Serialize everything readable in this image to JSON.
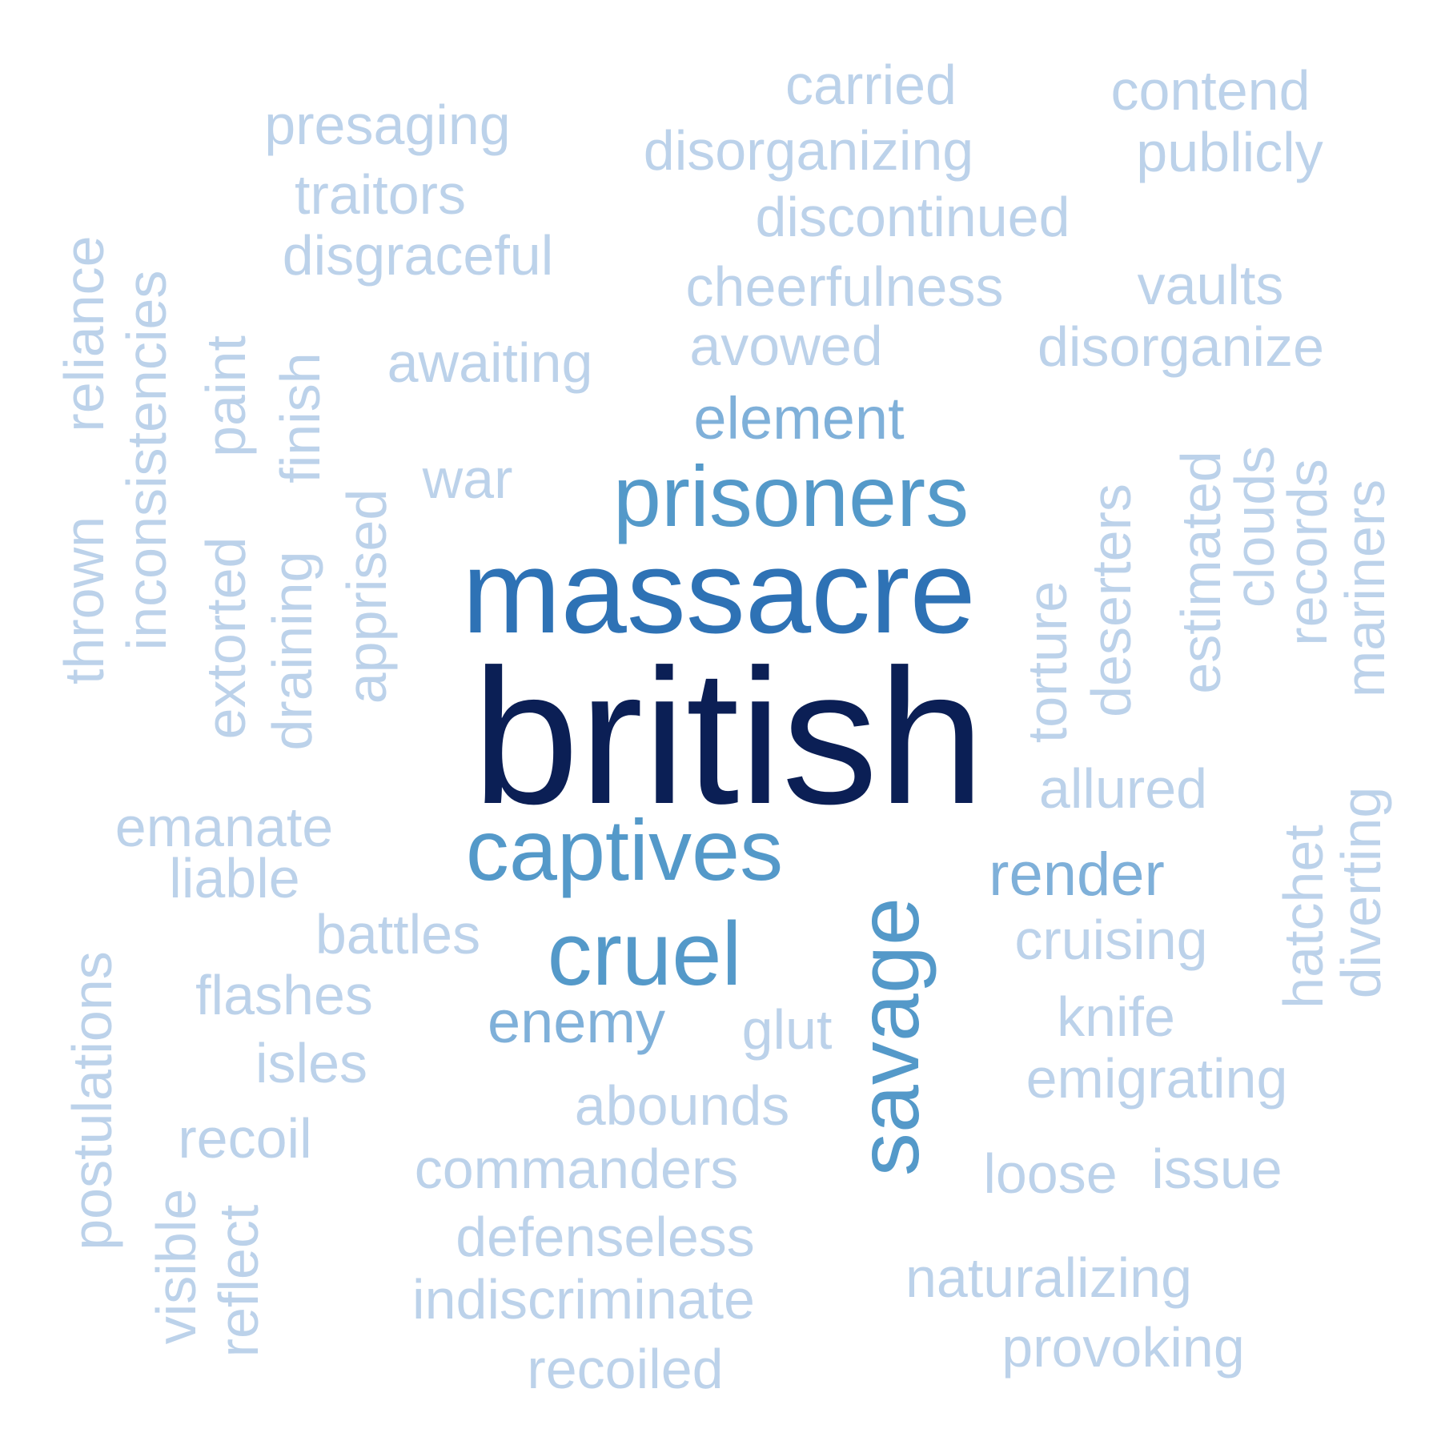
{
  "words": [
    {
      "text": "british",
      "weight": 1.0,
      "color": "#0b1f55"
    },
    {
      "text": "massacre",
      "weight": 0.62,
      "color": "#2e72b5"
    },
    {
      "text": "prisoners",
      "weight": 0.45,
      "color": "#5499c9"
    },
    {
      "text": "captives",
      "weight": 0.45,
      "color": "#5499c9"
    },
    {
      "text": "cruel",
      "weight": 0.47,
      "color": "#5499c9"
    },
    {
      "text": "savage",
      "weight": 0.45,
      "color": "#5499c9"
    },
    {
      "text": "element",
      "weight": 0.3,
      "color": "#7fb0d9"
    },
    {
      "text": "enemy",
      "weight": 0.3,
      "color": "#7fb0d9"
    },
    {
      "text": "render",
      "weight": 0.3,
      "color": "#7fb0d9"
    },
    {
      "text": "carried",
      "weight": 0.25,
      "color": "#bcd2ea"
    },
    {
      "text": "contend",
      "weight": 0.25,
      "color": "#bcd2ea"
    },
    {
      "text": "presaging",
      "weight": 0.25,
      "color": "#bcd2ea"
    },
    {
      "text": "disorganizing",
      "weight": 0.25,
      "color": "#bcd2ea"
    },
    {
      "text": "publicly",
      "weight": 0.25,
      "color": "#bcd2ea"
    },
    {
      "text": "traitors",
      "weight": 0.25,
      "color": "#bcd2ea"
    },
    {
      "text": "discontinued",
      "weight": 0.25,
      "color": "#bcd2ea"
    },
    {
      "text": "disgraceful",
      "weight": 0.25,
      "color": "#bcd2ea"
    },
    {
      "text": "cheerfulness",
      "weight": 0.25,
      "color": "#bcd2ea"
    },
    {
      "text": "vaults",
      "weight": 0.25,
      "color": "#bcd2ea"
    },
    {
      "text": "awaiting",
      "weight": 0.25,
      "color": "#bcd2ea"
    },
    {
      "text": "avowed",
      "weight": 0.25,
      "color": "#bcd2ea"
    },
    {
      "text": "disorganize",
      "weight": 0.25,
      "color": "#bcd2ea"
    },
    {
      "text": "war",
      "weight": 0.25,
      "color": "#bcd2ea"
    },
    {
      "text": "thrown",
      "weight": 0.25,
      "color": "#bcd2ea"
    },
    {
      "text": "reliance",
      "weight": 0.25,
      "color": "#bcd2ea"
    },
    {
      "text": "inconsistencies",
      "weight": 0.25,
      "color": "#bcd2ea"
    },
    {
      "text": "extorted",
      "weight": 0.25,
      "color": "#bcd2ea"
    },
    {
      "text": "paint",
      "weight": 0.25,
      "color": "#bcd2ea"
    },
    {
      "text": "draining",
      "weight": 0.25,
      "color": "#bcd2ea"
    },
    {
      "text": "finish",
      "weight": 0.25,
      "color": "#bcd2ea"
    },
    {
      "text": "apprised",
      "weight": 0.25,
      "color": "#bcd2ea"
    },
    {
      "text": "torture",
      "weight": 0.25,
      "color": "#bcd2ea"
    },
    {
      "text": "deserters",
      "weight": 0.25,
      "color": "#bcd2ea"
    },
    {
      "text": "estimated",
      "weight": 0.25,
      "color": "#bcd2ea"
    },
    {
      "text": "clouds",
      "weight": 0.25,
      "color": "#bcd2ea"
    },
    {
      "text": "records",
      "weight": 0.25,
      "color": "#bcd2ea"
    },
    {
      "text": "mariners",
      "weight": 0.25,
      "color": "#bcd2ea"
    },
    {
      "text": "allured",
      "weight": 0.25,
      "color": "#bcd2ea"
    },
    {
      "text": "hatchet",
      "weight": 0.25,
      "color": "#bcd2ea"
    },
    {
      "text": "diverting",
      "weight": 0.25,
      "color": "#bcd2ea"
    },
    {
      "text": "emanate",
      "weight": 0.25,
      "color": "#bcd2ea"
    },
    {
      "text": "liable",
      "weight": 0.25,
      "color": "#bcd2ea"
    },
    {
      "text": "battles",
      "weight": 0.25,
      "color": "#bcd2ea"
    },
    {
      "text": "cruising",
      "weight": 0.25,
      "color": "#bcd2ea"
    },
    {
      "text": "flashes",
      "weight": 0.25,
      "color": "#bcd2ea"
    },
    {
      "text": "glut",
      "weight": 0.25,
      "color": "#bcd2ea"
    },
    {
      "text": "knife",
      "weight": 0.25,
      "color": "#bcd2ea"
    },
    {
      "text": "postulations",
      "weight": 0.25,
      "color": "#bcd2ea"
    },
    {
      "text": "isles",
      "weight": 0.25,
      "color": "#bcd2ea"
    },
    {
      "text": "emigrating",
      "weight": 0.25,
      "color": "#bcd2ea"
    },
    {
      "text": "abounds",
      "weight": 0.25,
      "color": "#bcd2ea"
    },
    {
      "text": "recoil",
      "weight": 0.25,
      "color": "#bcd2ea"
    },
    {
      "text": "commanders",
      "weight": 0.25,
      "color": "#bcd2ea"
    },
    {
      "text": "loose",
      "weight": 0.25,
      "color": "#bcd2ea"
    },
    {
      "text": "issue",
      "weight": 0.25,
      "color": "#bcd2ea"
    },
    {
      "text": "visible",
      "weight": 0.25,
      "color": "#bcd2ea"
    },
    {
      "text": "reflect",
      "weight": 0.25,
      "color": "#bcd2ea"
    },
    {
      "text": "defenseless",
      "weight": 0.25,
      "color": "#bcd2ea"
    },
    {
      "text": "naturalizing",
      "weight": 0.25,
      "color": "#bcd2ea"
    },
    {
      "text": "indiscriminate",
      "weight": 0.25,
      "color": "#bcd2ea"
    },
    {
      "text": "provoking",
      "weight": 0.25,
      "color": "#bcd2ea"
    },
    {
      "text": "recoiled",
      "weight": 0.25,
      "color": "#bcd2ea"
    }
  ]
}
